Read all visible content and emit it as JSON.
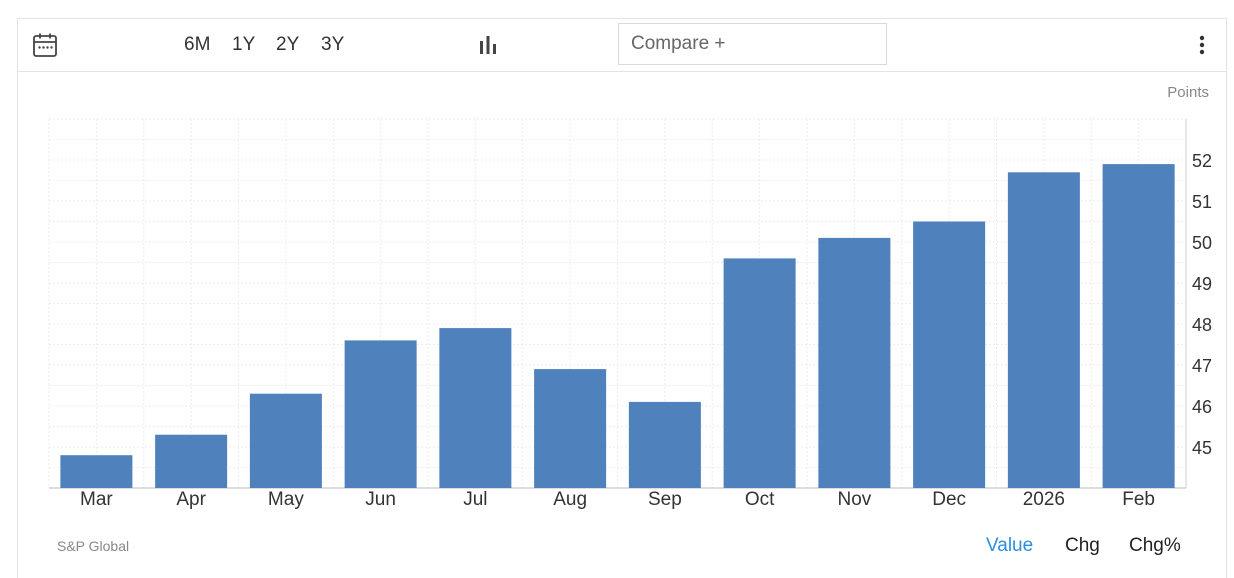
{
  "toolbar": {
    "calendar_icon": "calendar-icon",
    "ranges": [
      "6M",
      "1Y",
      "2Y",
      "3Y"
    ],
    "chart_type_icon": "bar-chart-icon",
    "compare_placeholder": "Compare +",
    "more_icon": "vertical-dots-icon"
  },
  "footer": {
    "source": "S&P Global",
    "modes": [
      "Value",
      "Chg",
      "Chg%"
    ],
    "active_mode": "Value"
  },
  "colors": {
    "bar": "#4f81bd",
    "active_mode": "#2a8fe0",
    "grid": "#ececec"
  },
  "chart_data": {
    "type": "bar",
    "title": "",
    "unit_label": "Points",
    "xlabel": "",
    "ylabel": "",
    "categories": [
      "Mar",
      "Apr",
      "May",
      "Jun",
      "Jul",
      "Aug",
      "Sep",
      "Oct",
      "Nov",
      "Dec",
      "2026",
      "Feb"
    ],
    "values": [
      44.8,
      45.3,
      46.3,
      47.6,
      47.9,
      46.9,
      46.1,
      49.6,
      50.1,
      50.5,
      51.7,
      51.9
    ],
    "y_ticks": [
      45,
      46,
      47,
      48,
      49,
      50,
      51,
      52
    ],
    "ylim": [
      44,
      53
    ],
    "y_axis_side": "right",
    "grid": true,
    "legend": "none"
  }
}
